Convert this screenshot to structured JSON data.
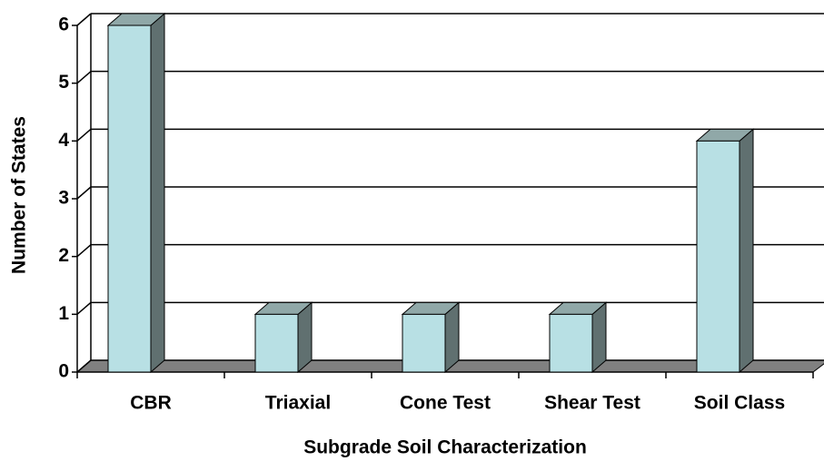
{
  "chart_data": {
    "type": "bar3d",
    "x_label": "Subgrade Soil Characterization",
    "y_label": "Number of States",
    "categories": [
      "CBR",
      "Triaxial",
      "Cone Test",
      "Shear Test",
      "Soil Class"
    ],
    "values": [
      6,
      1,
      1,
      1,
      4
    ],
    "color": "#b8e0e4",
    "ylim": [
      0,
      6
    ],
    "yticks": [
      0,
      1,
      2,
      3,
      4,
      5,
      6
    ],
    "grid": true
  }
}
